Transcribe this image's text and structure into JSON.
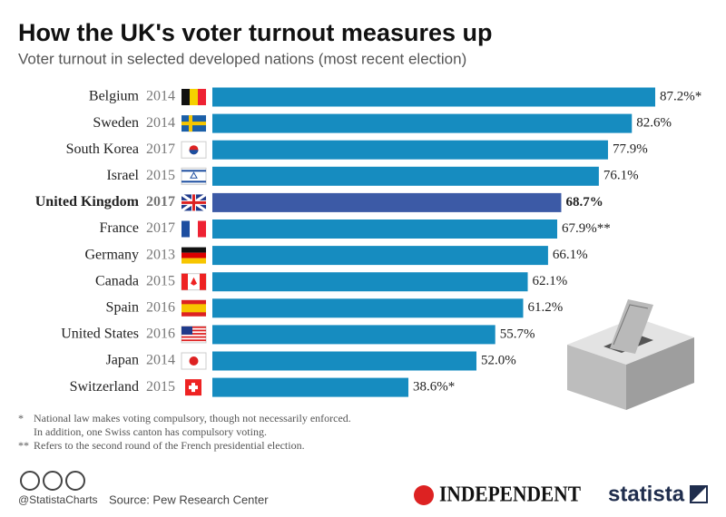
{
  "chart_data": {
    "type": "hbar",
    "title": "How the UK's voter turnout measures up",
    "subtitle": "Voter turnout in selected developed nations (most recent election)",
    "categories": [
      "Belgium",
      "Sweden",
      "South Korea",
      "Israel",
      "United Kingdom",
      "France",
      "Germany",
      "Canada",
      "Spain",
      "United States",
      "Japan",
      "Switzerland"
    ],
    "years": [
      "2014",
      "2014",
      "2017",
      "2015",
      "2017",
      "2017",
      "2013",
      "2015",
      "2016",
      "2016",
      "2014",
      "2015"
    ],
    "values": [
      87.2,
      82.6,
      77.9,
      76.1,
      68.7,
      67.9,
      66.1,
      62.1,
      61.2,
      55.7,
      52.0,
      38.6
    ],
    "value_labels": [
      "87.2%*",
      "82.6%",
      "77.9%",
      "76.1%",
      "68.7%",
      "67.9%**",
      "66.1%",
      "62.1%",
      "61.2%",
      "55.7%",
      "52.0%",
      "38.6%*"
    ],
    "colors": [
      "#168cc0",
      "#168cc0",
      "#168cc0",
      "#168cc0",
      "#3c5aa6",
      "#168cc0",
      "#168cc0",
      "#168cc0",
      "#168cc0",
      "#168cc0",
      "#168cc0",
      "#168cc0"
    ],
    "notes": [
      {
        "mark": "*",
        "lines": [
          "National law makes voting compulsory, though not necessarily enforced.",
          "In addition, one Swiss canton has compulsory voting."
        ]
      },
      {
        "mark": "**",
        "lines": [
          "Refers to the second round of the French presidential election."
        ]
      }
    ]
  },
  "footer": {
    "handle": "@StatistaCharts",
    "source": "Source: Pew Research Center",
    "publisher": "INDEPENDENT",
    "brand": "statista"
  }
}
